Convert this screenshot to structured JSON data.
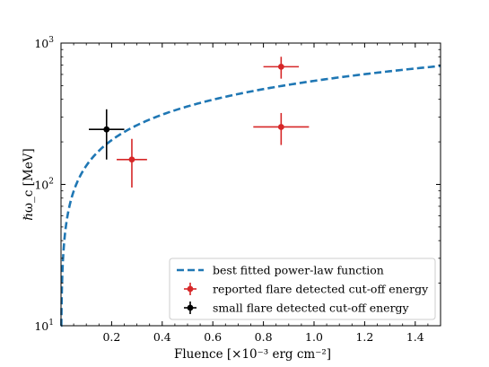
{
  "chart_data": {
    "type": "scatter",
    "xlabel": "Fluence [×10⁻³ erg cm⁻²]",
    "ylabel": "ℏω_c [MeV]",
    "xlim": [
      0,
      1.5
    ],
    "ylim": [
      10,
      1000
    ],
    "yscale": "log",
    "x_ticks": [
      0.2,
      0.4,
      0.6,
      0.8,
      1.0,
      1.2,
      1.4
    ],
    "x_tick_labels": [
      "0.2",
      "0.4",
      "0.6",
      "0.8",
      "1.0",
      "1.2",
      "1.4"
    ],
    "y_ticks": [
      10,
      100,
      1000
    ],
    "y_tick_labels": [
      {
        "base": "10",
        "exp": "1"
      },
      {
        "base": "10",
        "exp": "2"
      },
      {
        "base": "10",
        "exp": "3"
      }
    ],
    "grid": false,
    "legend_position": "lower-right",
    "series": [
      {
        "name": "best fitted power-law function",
        "kind": "line",
        "style": "dashed",
        "color": "#1f77b4",
        "power_law": {
          "amplitude": 540,
          "exponent": 0.6,
          "reference_x": 1.0
        },
        "x_range": [
          0.0005,
          1.5
        ]
      },
      {
        "name": "reported flare detected cut-off energy",
        "kind": "errorbar",
        "color": "#d62728",
        "points": [
          {
            "x": 0.28,
            "y": 150,
            "xerr": 0.06,
            "yerr_low": 55,
            "yerr_high": 60
          },
          {
            "x": 0.87,
            "y": 680,
            "xerr": 0.07,
            "yerr_low": 120,
            "yerr_high": 120
          },
          {
            "x": 0.87,
            "y": 255,
            "xerr": 0.11,
            "yerr_low": 65,
            "yerr_high": 65
          }
        ]
      },
      {
        "name": "small flare detected cut-off energy",
        "kind": "errorbar",
        "color": "#000000",
        "points": [
          {
            "x": 0.18,
            "y": 245,
            "xerr": 0.07,
            "yerr_low": 95,
            "yerr_high": 95
          }
        ]
      }
    ]
  }
}
